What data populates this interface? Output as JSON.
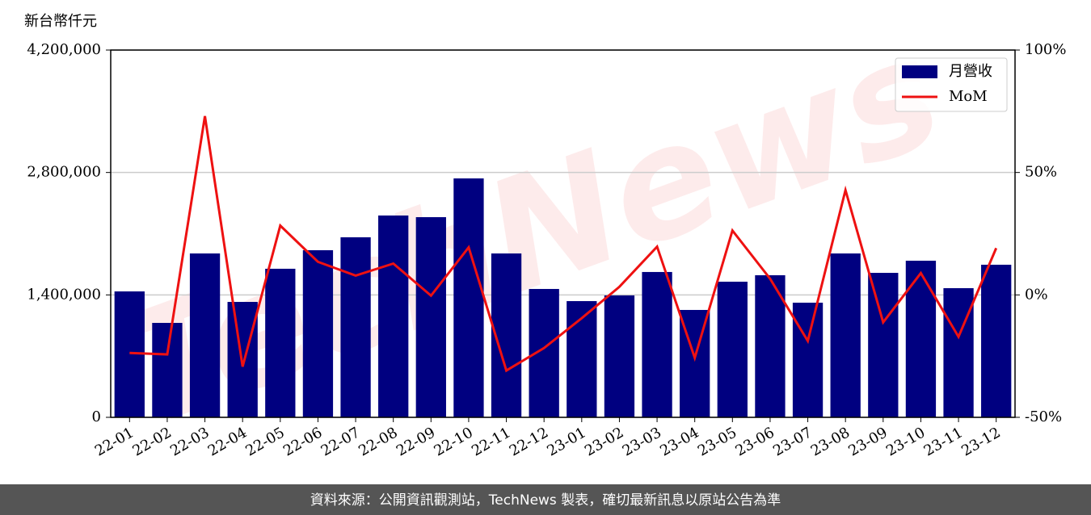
{
  "chart_data": {
    "type": "bar_line",
    "y_label": "新台幣仟元",
    "watermark": "TechNews",
    "source": "資料來源：公開資訊觀測站，TechNews 製表，確切最新訊息以原站公告為準",
    "categories": [
      "22-01",
      "22-02",
      "22-03",
      "22-04",
      "22-05",
      "22-06",
      "22-07",
      "22-08",
      "22-09",
      "22-10",
      "22-11",
      "22-12",
      "23-01",
      "23-02",
      "23-03",
      "23-04",
      "23-05",
      "23-06",
      "23-07",
      "23-08",
      "23-09",
      "23-10",
      "23-11",
      "23-12"
    ],
    "series": [
      {
        "name": "月營收",
        "type": "bar",
        "color": "#000080",
        "values": [
          1440000,
          1080000,
          1874000,
          1320000,
          1699000,
          1911000,
          2059000,
          2308000,
          2289000,
          2732000,
          1874000,
          1468000,
          1329000,
          1394000,
          1662000,
          1228000,
          1551000,
          1625000,
          1311000,
          1874000,
          1652000,
          1791000,
          1477000,
          1745000
        ]
      },
      {
        "name": "MoM",
        "type": "line",
        "axis": "y2",
        "color": "#ee1111",
        "values": [
          -23.7,
          -24.3,
          73,
          -29.3,
          28.3,
          13.5,
          7.9,
          12.8,
          -0.3,
          19.4,
          -30.9,
          -21.7,
          -9.5,
          3.3,
          19.7,
          -25.7,
          26.3,
          6.6,
          -18.8,
          42.8,
          -11.2,
          8.9,
          -17.1,
          19.1
        ]
      }
    ],
    "ylim": [
      0,
      4200000
    ],
    "yticks": [
      0,
      {
        "value": 1400000,
        "label": "1,400,000"
      },
      {
        "value": 2800000,
        "label": "2,800,000"
      },
      {
        "value": 4200000,
        "label": "4,200,000"
      }
    ],
    "y2lim": [
      -50,
      100
    ],
    "y2ticks": [
      {
        "value": -50,
        "label": "-50%"
      },
      {
        "value": 0,
        "label": "0%"
      },
      {
        "value": 50,
        "label": "50%"
      },
      {
        "value": 100,
        "label": "100%"
      }
    ],
    "grid": true,
    "legend": "upper right"
  }
}
